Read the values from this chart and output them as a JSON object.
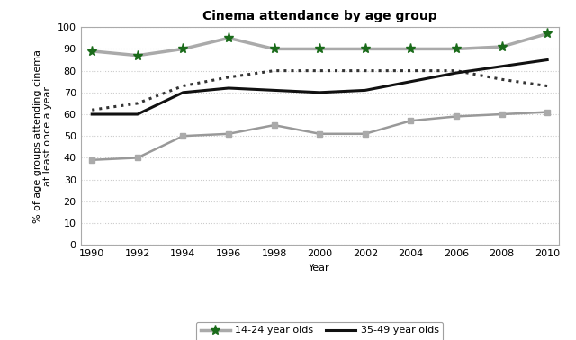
{
  "title": "Cinema attendance by age group",
  "xlabel": "Year",
  "ylabel": "% of age groups attending cinema\nat least once a year",
  "years": [
    1990,
    1992,
    1994,
    1996,
    1998,
    2000,
    2002,
    2004,
    2006,
    2008,
    2010
  ],
  "series": {
    "14-24 year olds": {
      "values": [
        89,
        87,
        90,
        95,
        90,
        90,
        90,
        90,
        90,
        91,
        97
      ],
      "line_color": "#aaaaaa",
      "linestyle": "-",
      "marker": "*",
      "markercolor": "#1a6b1a",
      "linewidth": 2.5,
      "markersize": 8,
      "zorder": 3
    },
    "25-34 year olds": {
      "values": [
        62,
        65,
        73,
        77,
        80,
        80,
        80,
        80,
        80,
        76,
        73
      ],
      "line_color": "#333333",
      "linestyle": ":",
      "marker": null,
      "linewidth": 2.2,
      "markersize": 0,
      "zorder": 2
    },
    "35-49 year olds": {
      "values": [
        60,
        60,
        70,
        72,
        71,
        70,
        71,
        75,
        79,
        82,
        85
      ],
      "line_color": "#111111",
      "linestyle": "-",
      "marker": null,
      "linewidth": 2.2,
      "markersize": 0,
      "zorder": 2
    },
    "50+ year olds": {
      "values": [
        39,
        40,
        50,
        51,
        55,
        51,
        51,
        57,
        59,
        60,
        61
      ],
      "line_color": "#999999",
      "linestyle": "-",
      "marker": "s",
      "markercolor": "#aaaaaa",
      "linewidth": 1.8,
      "markersize": 5,
      "zorder": 2
    }
  },
  "ylim": [
    0,
    100
  ],
  "yticks": [
    0,
    10,
    20,
    30,
    40,
    50,
    60,
    70,
    80,
    90,
    100
  ],
  "background_color": "#ffffff",
  "plot_bg_color": "#ffffff",
  "grid_color": "#cccccc",
  "title_fontsize": 10,
  "label_fontsize": 8,
  "tick_fontsize": 8,
  "legend_fontsize": 8
}
